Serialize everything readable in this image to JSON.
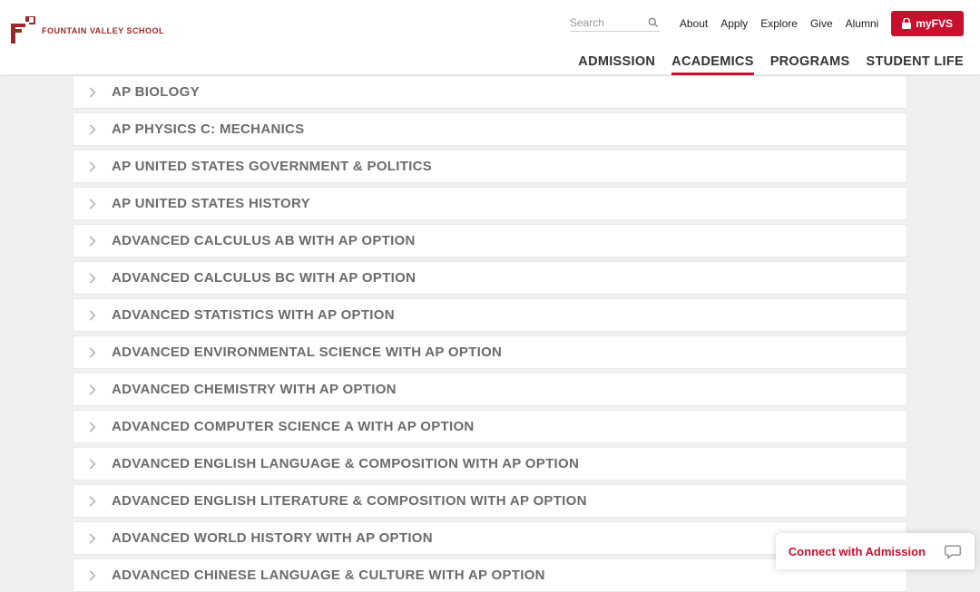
{
  "brand": {
    "name": "FOUNTAIN VALLEY SCHOOL",
    "accent_color": "#c8102e",
    "logo_color": "#9a2a2a"
  },
  "search": {
    "placeholder": "Search"
  },
  "util_nav": {
    "items": [
      {
        "label": "About"
      },
      {
        "label": "Apply"
      },
      {
        "label": "Explore"
      },
      {
        "label": "Give"
      },
      {
        "label": "Alumni"
      }
    ],
    "myfvs_label": "myFVS"
  },
  "main_nav": {
    "items": [
      {
        "label": "ADMISSION",
        "active": false
      },
      {
        "label": "ACADEMICS",
        "active": true
      },
      {
        "label": "PROGRAMS",
        "active": false
      },
      {
        "label": "STUDENT LIFE",
        "active": false
      }
    ]
  },
  "courses": [
    {
      "label": "AP BIOLOGY"
    },
    {
      "label": "AP PHYSICS C: MECHANICS"
    },
    {
      "label": "AP UNITED STATES GOVERNMENT & POLITICS"
    },
    {
      "label": "AP UNITED STATES HISTORY"
    },
    {
      "label": "ADVANCED CALCULUS AB WITH AP OPTION"
    },
    {
      "label": "ADVANCED CALCULUS BC WITH AP OPTION"
    },
    {
      "label": "ADVANCED STATISTICS WITH AP OPTION"
    },
    {
      "label": "ADVANCED ENVIRONMENTAL SCIENCE WITH AP OPTION"
    },
    {
      "label": "ADVANCED CHEMISTRY WITH AP OPTION"
    },
    {
      "label": "ADVANCED COMPUTER SCIENCE A WITH AP OPTION"
    },
    {
      "label": "ADVANCED ENGLISH LANGUAGE & COMPOSITION WITH AP OPTION"
    },
    {
      "label": "ADVANCED ENGLISH LITERATURE & COMPOSITION WITH AP OPTION"
    },
    {
      "label": "ADVANCED WORLD HISTORY WITH AP OPTION"
    },
    {
      "label": "ADVANCED CHINESE LANGUAGE & CULTURE WITH AP OPTION"
    }
  ],
  "chat": {
    "label": "Connect with Admission"
  }
}
